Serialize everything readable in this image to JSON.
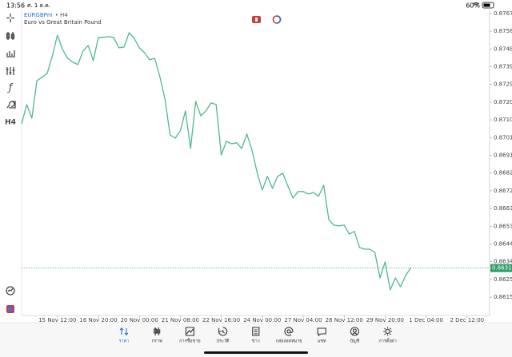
{
  "status_bar": {
    "time": "13:56",
    "date": "ศ. 1 ธ.ค.",
    "battery": "60%"
  },
  "toolbar": {
    "timeframe": "H4"
  },
  "chart_data": {
    "type": "line",
    "symbol": "EURGBPm",
    "timeframe": "• H4",
    "subtitle": "Euro vs Great Britain Pound",
    "color": "#4fb98a",
    "current": 0.86311,
    "current_color": "#2e9e6b",
    "categories": [
      null,
      null,
      null,
      null,
      null,
      null,
      null,
      "15 Nov 12:00",
      null,
      null,
      null,
      null,
      null,
      null,
      null,
      "16 Nov 20:00",
      null,
      null,
      null,
      null,
      null,
      null,
      null,
      "20 Nov 00:00",
      null,
      null,
      null,
      null,
      null,
      null,
      null,
      "21 Nov 08:00",
      null,
      null,
      null,
      null,
      null,
      null,
      null,
      "22 Nov 16:00",
      null,
      null,
      null,
      null,
      null,
      null,
      null,
      "24 Nov 00:00",
      null,
      null,
      null,
      null,
      null,
      null,
      null,
      "27 Nov 04:00",
      null,
      null,
      null,
      null,
      null,
      null,
      null,
      "28 Nov 12:00",
      null,
      null,
      null,
      null,
      null,
      null,
      null,
      "29 Nov 20:00",
      null,
      null,
      null,
      null,
      null,
      null,
      null,
      "1 Dec 04:00",
      null,
      null,
      null,
      null,
      null,
      null,
      null,
      "2 Dec 12:00",
      null,
      null
    ],
    "values": [
      0.87084,
      0.87187,
      0.87114,
      0.87316,
      0.87333,
      0.87354,
      0.87448,
      0.87559,
      0.87482,
      0.87435,
      0.87414,
      0.87401,
      0.87474,
      0.87504,
      0.87423,
      0.87547,
      0.87547,
      0.87551,
      0.87547,
      0.87491,
      0.87495,
      0.87572,
      0.87542,
      0.87491,
      0.87465,
      0.87427,
      0.87435,
      0.87337,
      0.87217,
      0.87024,
      0.87007,
      0.87046,
      0.87153,
      0.86952,
      0.87204,
      0.87127,
      0.87153,
      0.87196,
      0.87187,
      0.86917,
      0.8699,
      0.86977,
      0.86982,
      0.86952,
      0.87029,
      0.86943,
      0.86823,
      0.86729,
      0.86802,
      0.86738,
      0.86802,
      0.86819,
      0.86751,
      0.86686,
      0.86721,
      0.86721,
      0.86708,
      0.86716,
      0.86695,
      0.86755,
      0.86571,
      0.86541,
      0.86537,
      0.86541,
      0.86494,
      0.86507,
      0.86421,
      0.86412,
      0.86412,
      0.86395,
      0.86258,
      0.86344,
      0.86194,
      0.86258,
      0.86211,
      0.86271,
      0.86311,
      null,
      null,
      null,
      null,
      null,
      null,
      null,
      null,
      null,
      null,
      null,
      null,
      null
    ],
    "ylim": [
      0.86057,
      0.87696
    ],
    "yticks": [
      0.87675,
      {
        "value": 0.8758,
        "label": "0.87580"
      },
      0.87485,
      {
        "value": 0.8739,
        "label": "0.87390"
      },
      0.87295,
      {
        "value": 0.872,
        "label": "0.87200"
      },
      0.87105,
      {
        "value": 0.8701,
        "label": "0.87010"
      },
      0.86915,
      {
        "value": 0.8682,
        "label": "0.86820"
      },
      0.86725,
      {
        "value": 0.8663,
        "label": "0.86630"
      },
      0.86535,
      {
        "value": 0.8644,
        "label": "0.86440"
      },
      0.86345,
      {
        "value": 0.8625,
        "label": "0.86250"
      },
      0.86155
    ]
  },
  "nav": {
    "active": 0,
    "items": [
      "ราคา",
      "กราฟ",
      "การซื้อขาย",
      "ประวัติ",
      "ข่าว",
      "กล่องจดหมาย",
      "แชท",
      "บัญชี",
      "การตั้งค่า"
    ]
  }
}
